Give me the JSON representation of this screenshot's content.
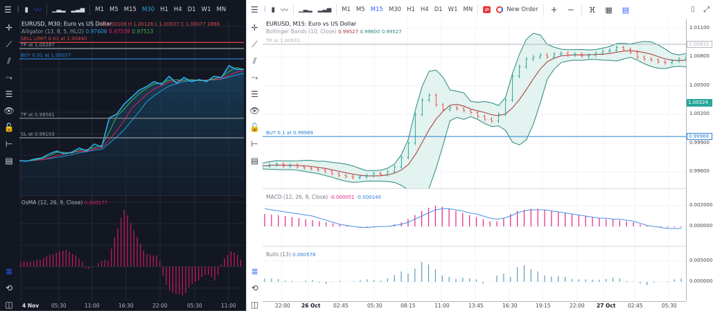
{
  "left": {
    "toolbar": {
      "chart_types": [
        {
          "icon": "bar-chart-icon"
        },
        {
          "icon": "candles-icon"
        },
        {
          "icon": "line-chart-icon",
          "active": true
        },
        {
          "icon": "volume-icon"
        },
        {
          "icon": "volume-tick-icon"
        }
      ],
      "timeframes": [
        "M1",
        "M5",
        "M15",
        "M30",
        "H1",
        "H4",
        "D1",
        "W1",
        "MN"
      ],
      "active_timeframe": "M30"
    },
    "title": "EURUSD, M30: Euro vs US Dollar",
    "ohlc": "O 1.00108 H 1.00126 L 1.00037 C 1.00077 1866",
    "alligator": {
      "label": "Alligator (13, 8, 5, HL/2)",
      "v1": "0.97606",
      "v2": "0.97538",
      "v3": "0.97513"
    },
    "orders": [
      {
        "label": "SELL LIMIT 0.01 at 1.00440",
        "price": 1.0044,
        "color": "#e04848"
      },
      {
        "label": "TP at 1.00287",
        "price": 1.00287,
        "color": "#9598a1"
      },
      {
        "label": "BUY 0.01 at 1.00037",
        "price": 1.00037,
        "color": "#2a7fd4"
      },
      {
        "label": "TP at 0.98581",
        "price": 0.98581,
        "color": "#9598a1"
      },
      {
        "label": "SL at 0.98103",
        "price": 0.98103,
        "color": "#9598a1"
      }
    ],
    "osma": {
      "label": "OsMA (12, 26, 9, Close)",
      "value": "0.000177"
    },
    "time_labels": [
      "4 Nov",
      "05:30",
      "11:00",
      "16:30",
      "22:00",
      "05:30",
      "11:00"
    ]
  },
  "right": {
    "toolbar": {
      "timeframes": [
        "M1",
        "M5",
        "M15",
        "M30",
        "H1",
        "H4",
        "D1",
        "W1",
        "MN"
      ],
      "active_timeframe": "M15",
      "new_order": "New Order"
    },
    "title": "EURUSD, M15: Euro vs US Dollar",
    "bollinger": {
      "label": "Bollinger Bands (10, Close)",
      "v1": "0.99527",
      "v2": "0.99600",
      "v3": "0.99527"
    },
    "orders": [
      {
        "label": "TP at 1.00933",
        "price": 1.00933,
        "tag": "1.00933"
      },
      {
        "label": "BUY 0.1 at 0.99969",
        "price": 0.99969,
        "tag": "0.99969"
      }
    ],
    "current_price": "1.00324",
    "price_axis": [
      "1.01100",
      "1.00800",
      "1.00500",
      "1.00200",
      "0.99900",
      "0.99600"
    ],
    "macd": {
      "label": "MACD (12, 26, 9, Close)",
      "v1": "-0.000051",
      "v2": "-0.000140",
      "axis": [
        "0.002000",
        "0.000000"
      ]
    },
    "bulls": {
      "label": "Bulls (13)",
      "value": "0.000576",
      "axis": [
        "0.005000",
        "0.000000"
      ]
    },
    "time_labels": [
      "22:00",
      "26 Oct",
      "02:45",
      "05:30",
      "08:15",
      "11:00",
      "13:45",
      "16:30",
      "19:15",
      "22:00",
      "27 Oct",
      "02:45",
      "05:30"
    ]
  },
  "colors": {
    "accent": "#2962ff",
    "up": "#26a69a",
    "down": "#ef5350",
    "osma": "#c2185b",
    "macd_hist": "#e91e80",
    "signal": "#4a90e2",
    "bulls": "#5b9bb5",
    "band": "#26877a"
  },
  "chart_data": [
    {
      "type": "line",
      "name": "EURUSD M30",
      "close": [
        0.9754,
        0.9753,
        0.9758,
        0.9761,
        0.9771,
        0.9778,
        0.9771,
        0.9775,
        0.9785,
        0.9778,
        0.9795,
        0.9788,
        0.9859,
        0.9868,
        0.9893,
        0.991,
        0.9927,
        0.9936,
        0.9948,
        0.9941,
        0.9961,
        0.9944,
        0.9958,
        0.9948,
        0.9953,
        0.9948,
        0.9961,
        0.9958,
        0.9987,
        0.9978,
        0.9978
      ],
      "osma": [
        7e-05,
        8e-05,
        7e-05,
        7e-05,
        8e-05,
        0.0001,
        0.0001,
        0.00012,
        0.00015,
        0.00017,
        0.00018,
        0.0002,
        0.00022,
        0.00023,
        0.00024,
        0.00022,
        0.00018,
        0.00016,
        0.00012,
        7e-05,
        -2e-05,
        -3e-05,
        -1e-05,
        0,
        5e-05,
        8e-05,
        0.0001,
        9e-05,
        0.00026,
        0.00042,
        0.00055,
        0.0007,
        0.00082,
        0.00074,
        0.00063,
        0.00053,
        0.00043,
        0.00033,
        0.00023,
        0.00018,
        0.00017,
        0.00016,
        0.00016,
        8e-05,
        -0.00013,
        -0.00026,
        -0.00035,
        -0.00038,
        -0.0004,
        -0.0004,
        -0.00042,
        -0.00038,
        -0.0003,
        -0.00025,
        -0.00022,
        -0.0002,
        -0.00015,
        -0.00012,
        -0.00012,
        -0.00015,
        -0.0002,
        -0.00012,
        3e-05,
        0.00012,
        0.00017,
        0.00022,
        0.0002,
        0.00017,
        0.0001
      ]
    },
    {
      "type": "candlestick",
      "name": "EURUSD M15",
      "close": [
        0.9966,
        0.9967,
        0.9968,
        0.9966,
        0.9967,
        0.9965,
        0.9964,
        0.9963,
        0.9962,
        0.996,
        0.9958,
        0.9956,
        0.9955,
        0.9954,
        0.9955,
        0.9956,
        0.9958,
        0.9957,
        0.996,
        0.9965,
        0.9975,
        0.999,
        1.002,
        1.0035,
        1.004,
        1.003,
        1.0025,
        1.0027,
        1.0026,
        1.0024,
        1.0022,
        1.0018,
        1.0015,
        1.0013,
        1.002,
        1.0035,
        1.006,
        1.007,
        1.0078,
        1.008,
        1.0082,
        1.008,
        1.0083,
        1.0084,
        1.0082,
        1.0083,
        1.0081,
        1.0082,
        1.0084,
        1.0086,
        1.0087,
        1.009,
        1.0088,
        1.0085,
        1.008,
        1.0078,
        1.0077,
        1.0075,
        1.0074,
        1.0076,
        1.0078,
        1.008
      ],
      "ylim": [
        0.995,
        1.0115
      ],
      "macd_hist": [
        0.0012,
        0.00115,
        0.0011,
        0.001,
        0.0009,
        0.0008,
        0.0007,
        0.0006,
        0.0005,
        0.0004,
        0.0003,
        0.0002,
        0.0001,
        0,
        -5e-05,
        -0.0001,
        -0.0001,
        -5e-05,
        0,
        0.0002,
        0.0004,
        0.0007,
        0.0011,
        0.0015,
        0.0018,
        0.002,
        0.0019,
        0.0017,
        0.0015,
        0.0013,
        0.0011,
        0.0009,
        0.0007,
        0.0005,
        0.0005,
        0.0008,
        0.0012,
        0.0015,
        0.0016,
        0.0017,
        0.0017,
        0.0016,
        0.0015,
        0.0014,
        0.0013,
        0.0012,
        0.0011,
        0.001,
        0.0009,
        0.0008,
        0.0007,
        0.0007,
        0.0006,
        0.0005,
        0.0004,
        0.0002,
        0.0001,
        0,
        -0.0001,
        -0.0001,
        -0.0001,
        -0.0001
      ],
      "macd_signal": [
        0.0017,
        0.0016,
        0.0015,
        0.0014,
        0.0013,
        0.0012,
        0.0011,
        0.001,
        0.0008,
        0.0006,
        0.0004,
        0.0002,
        0.0001,
        0,
        -0.0001,
        -0.0001,
        -5e-05,
        0,
        0,
        0.0001,
        0.0002,
        0.0004,
        0.0007,
        0.001,
        0.0013,
        0.0016,
        0.0017,
        0.0017,
        0.0016,
        0.0015,
        0.0013,
        0.0012,
        0.001,
        0.0008,
        0.0007,
        0.0008,
        0.001,
        0.0013,
        0.0015,
        0.0016,
        0.0016,
        0.0016,
        0.0015,
        0.0014,
        0.0013,
        0.0012,
        0.0011,
        0.001,
        0.0009,
        0.0008,
        0.0008,
        0.0007,
        0.0007,
        0.0006,
        0.0005,
        0.0003,
        0.0001,
        0,
        -0.0001,
        -0.0002,
        -0.0002,
        -0.0002
      ],
      "bulls": [
        0.0008,
        0.0008,
        0.0007,
        0.0003,
        0.0002,
        0.0001,
        0.0003,
        0.0004,
        -0.0002,
        -0.0005,
        0.0001,
        0.0002,
        0,
        0.0001,
        0.0004,
        0.0006,
        0.0004,
        0.0003,
        0.0008,
        0.0017,
        0.0025,
        0.002,
        0.0032,
        0.0048,
        0.0042,
        0.003,
        0.0015,
        0.0012,
        0.0007,
        0.001,
        0.0008,
        0.0006,
        -0.0004,
        0,
        0.0015,
        0.002,
        0.0012,
        0.0035,
        0.004,
        0.003,
        0.0025,
        0.0015,
        0.0013,
        0.0014,
        0.0012,
        0.0007,
        0.0006,
        0.0006,
        0.0005,
        0.0005,
        0.0007,
        0.001,
        0.0008,
        0.0002,
        0.0001,
        -0.0004,
        -0.0008,
        -0.0002,
        0,
        0.0001,
        0.0006,
        0.0008
      ]
    }
  ]
}
